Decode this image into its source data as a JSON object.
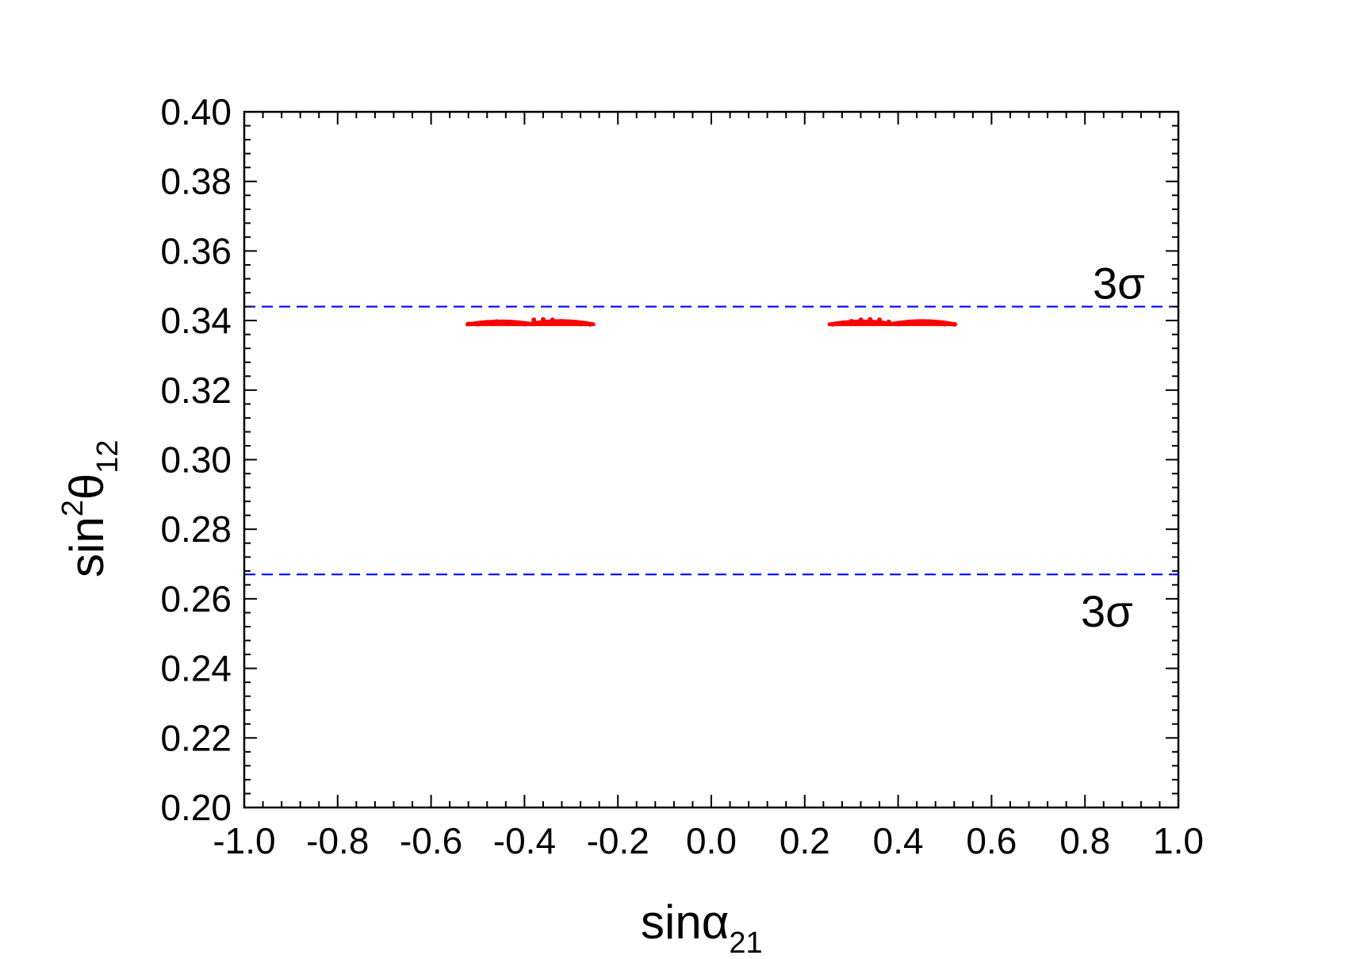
{
  "chart_data": {
    "type": "scatter",
    "title": "",
    "xlim": [
      -1.0,
      1.0
    ],
    "ylim": [
      0.2,
      0.4
    ],
    "x_ticks": [
      "-1.0",
      "-0.8",
      "-0.6",
      "-0.4",
      "-0.2",
      "0.0",
      "0.2",
      "0.4",
      "0.6",
      "0.8",
      "1.0"
    ],
    "y_ticks": [
      "0.20",
      "0.22",
      "0.24",
      "0.26",
      "0.28",
      "0.30",
      "0.32",
      "0.34",
      "0.36",
      "0.38",
      "0.40"
    ],
    "xlabel": {
      "base": "sin",
      "greek": "α",
      "sub": "21"
    },
    "ylabel": {
      "base": "sin",
      "sup": "2",
      "greek": "θ",
      "sub": "12"
    },
    "grid": false,
    "legend": "none",
    "colors": {
      "points": "#ff0000",
      "bounds": "#0000ff",
      "axes": "#000000"
    },
    "reference_lines": [
      {
        "y": 0.344,
        "style": "dashed",
        "color": "#0000ff",
        "label": "3σ"
      },
      {
        "y": 0.267,
        "style": "dashed",
        "color": "#0000ff",
        "label": "3σ"
      }
    ],
    "regions": [
      {
        "x": [
          -0.525,
          -0.25
        ],
        "y": [
          0.3385,
          0.3405
        ]
      },
      {
        "x": [
          0.25,
          0.525
        ],
        "y": [
          0.3385,
          0.3405
        ]
      }
    ],
    "points": [
      [
        -0.52,
        0.339
      ],
      [
        -0.5,
        0.339
      ],
      [
        -0.48,
        0.3395
      ],
      [
        -0.46,
        0.3397
      ],
      [
        -0.44,
        0.3396
      ],
      [
        -0.42,
        0.3393
      ],
      [
        -0.4,
        0.339
      ],
      [
        -0.38,
        0.3402
      ],
      [
        -0.36,
        0.3403
      ],
      [
        -0.34,
        0.3402
      ],
      [
        -0.32,
        0.3398
      ],
      [
        -0.3,
        0.3394
      ],
      [
        -0.28,
        0.339
      ],
      [
        -0.26,
        0.3389
      ],
      [
        0.26,
        0.3389
      ],
      [
        0.28,
        0.3393
      ],
      [
        0.3,
        0.3398
      ],
      [
        0.32,
        0.3402
      ],
      [
        0.34,
        0.3403
      ],
      [
        0.36,
        0.3402
      ],
      [
        0.38,
        0.3396
      ],
      [
        0.4,
        0.339
      ],
      [
        0.42,
        0.3394
      ],
      [
        0.44,
        0.3397
      ],
      [
        0.46,
        0.3396
      ],
      [
        0.48,
        0.3393
      ],
      [
        0.5,
        0.339
      ],
      [
        0.52,
        0.3389
      ]
    ]
  }
}
